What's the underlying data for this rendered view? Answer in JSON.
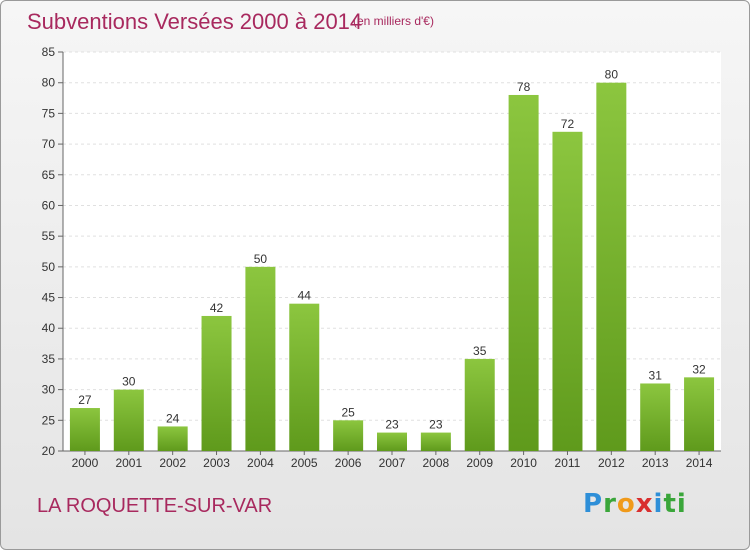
{
  "title": "Subventions Versées 2000 à 2014",
  "subtitle": "(en milliers d'€)",
  "place": "LA ROQUETTE-SUR-VAR",
  "logo": "Proxiti",
  "colors": {
    "bar": "#8cc63f",
    "bar_dark": "#5f9a1c",
    "title": "#a8295e"
  },
  "chart_data": {
    "type": "bar",
    "categories": [
      "2000",
      "2001",
      "2002",
      "2003",
      "2004",
      "2005",
      "2006",
      "2007",
      "2008",
      "2009",
      "2010",
      "2011",
      "2012",
      "2013",
      "2014"
    ],
    "values": [
      27,
      30,
      24,
      42,
      50,
      44,
      25,
      23,
      23,
      35,
      78,
      72,
      80,
      31,
      32
    ],
    "ylim": [
      20,
      85
    ],
    "yticks": [
      20,
      25,
      30,
      35,
      40,
      45,
      50,
      55,
      60,
      65,
      70,
      75,
      80,
      85
    ],
    "grid": true
  }
}
